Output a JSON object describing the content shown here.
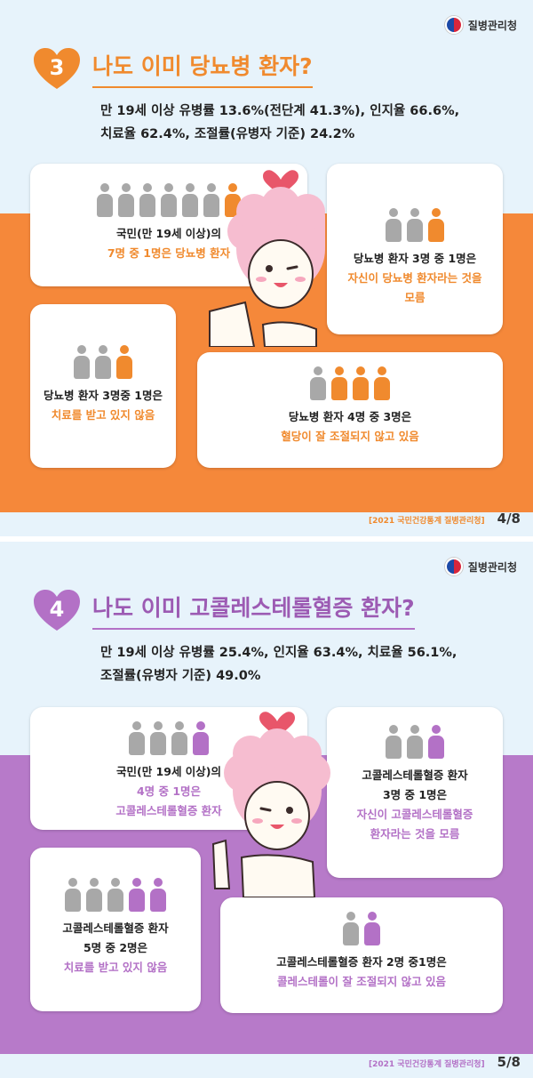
{
  "agency": "질병관리청",
  "panels": [
    {
      "number": "3",
      "title": "나도 이미 당뇨병 환자?",
      "summary_line1": "만 19세 이상 유병률 13.6%(전단계 41.3%), 인지율 66.6%,",
      "summary_line2": "치료율 62.4%, 조절률(유병자 기준) 24.2%",
      "cards": [
        {
          "people_total": 7,
          "people_highlight": 1,
          "line1": "국민(만 19세 이상)의",
          "line2": "7명 중 1명은 당뇨병 환자"
        },
        {
          "people_total": 3,
          "people_highlight": 1,
          "line1": "당뇨병 환자 3명 중 1명은",
          "line2": "자신이 당뇨병 환자라는 것을",
          "line3": "모름"
        },
        {
          "people_total": 3,
          "people_highlight": 1,
          "line1": "당뇨병 환자 3명중 1명은",
          "line2": "치료를 받고 있지 않음"
        },
        {
          "people_total": 4,
          "people_highlight": 3,
          "line1": "당뇨병 환자 4명 중 3명은",
          "line2": "혈당이 잘 조절되지 않고 있음"
        }
      ],
      "source": "[2021 국민건강통계 질병관리청]",
      "page": "4/8",
      "accent": "#f08a2e",
      "band_color": "#f5883a"
    },
    {
      "number": "4",
      "title": "나도 이미 고콜레스테롤혈증 환자?",
      "summary_line1": "만 19세 이상 유병률 25.4%, 인지율 63.4%, 치료율 56.1%,",
      "summary_line2": "조절률(유병자 기준) 49.0%",
      "cards": [
        {
          "people_total": 4,
          "people_highlight": 1,
          "line1": "국민(만 19세 이상)의",
          "line2": "4명 중 1명은",
          "line3": "고콜레스테롤혈증 환자"
        },
        {
          "people_total": 3,
          "people_highlight": 1,
          "line1": "고콜레스테롤혈증 환자",
          "line2": "3명 중 1명은",
          "line3": "자신이 고콜레스테롤혈증",
          "line4": "환자라는 것을 모름"
        },
        {
          "people_total": 5,
          "people_highlight": 2,
          "line1": "고콜레스테롤혈증 환자",
          "line2": "5명 중 2명은",
          "line3": "치료를 받고 있지 않음"
        },
        {
          "people_total": 2,
          "people_highlight": 1,
          "line1": "고콜레스테롤혈증 환자 2명 중1명은",
          "line2": "콜레스테롤이 잘 조절되지 않고 있음"
        }
      ],
      "source": "[2021 국민건강통계 질병관리청]",
      "page": "5/8",
      "accent": "#b371c6",
      "band_color": "#b77ac9"
    }
  ],
  "colors": {
    "person_gray": "#a8a8a8",
    "background": "#e7f3fb",
    "mascot_hair": "#f6bdd0",
    "mascot_heart": "#e8566a"
  }
}
